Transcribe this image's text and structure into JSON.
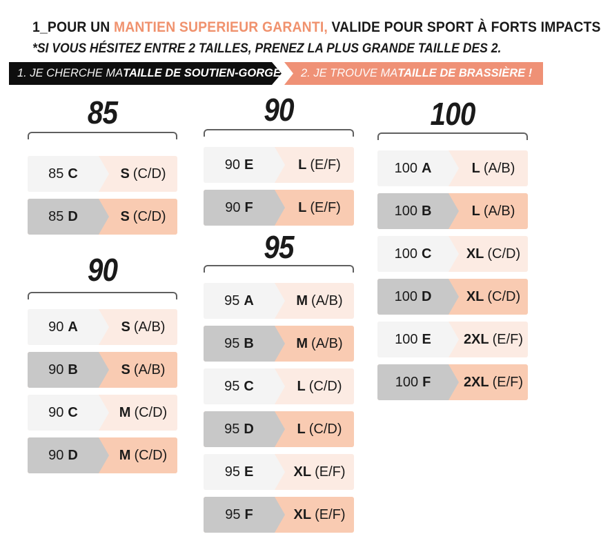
{
  "colors": {
    "accent": "#f0926e",
    "banner_dark_bg": "#0e0e0e",
    "banner_accent_bg": "#ef9176",
    "row_gray_light": "#f4f4f4",
    "row_gray_dark": "#c8c8c8",
    "row_peach_light": "#fcebe3",
    "row_peach_dark": "#f9cbb2",
    "bracket": "#5f5f5f",
    "text": "#1a1a1a"
  },
  "title": {
    "prefix": "1_POUR UN ",
    "highlight": "MANTIEN SUPERIEUR GARANTI,",
    "suffix": " VALIDE POUR SPORT À FORTS IMPACTS",
    "subtitle": "*SI VOUS HÉSITEZ ENTRE 2 TAILLES, PRENEZ LA PLUS GRANDE TAILLE DES 2."
  },
  "banners": {
    "left": {
      "prefix": "1. JE CHERCHE MA ",
      "bold": "TAILLE DE SOUTIEN-GORGE..."
    },
    "right": {
      "prefix": "2. JE TROUVE MA ",
      "bold": "TAILLE DE BRASSIÈRE !"
    }
  },
  "chart_data": {
    "type": "table",
    "title": "1_POUR UN MANTIEN SUPERIEUR GARANTI, VALIDE POUR SPORT À FORTS IMPACTS",
    "column_headers": [
      "1. JE CHERCHE MA TAILLE DE SOUTIEN-GORGE...",
      "2. JE TROUVE MA TAILLE DE BRASSIÈRE !"
    ],
    "layout_columns": [
      {
        "groups": [
          {
            "header": "85",
            "rows": [
              {
                "band": "85",
                "cup": "C",
                "size": "S",
                "range": "(C/D)",
                "shade": "light"
              },
              {
                "band": "85",
                "cup": "D",
                "size": "S",
                "range": "(C/D)",
                "shade": "dark"
              }
            ]
          },
          {
            "header": "90",
            "rows": [
              {
                "band": "90",
                "cup": "A",
                "size": "S",
                "range": "(A/B)",
                "shade": "light"
              },
              {
                "band": "90",
                "cup": "B",
                "size": "S",
                "range": "(A/B)",
                "shade": "dark"
              },
              {
                "band": "90",
                "cup": "C",
                "size": "M",
                "range": "(C/D)",
                "shade": "light"
              },
              {
                "band": "90",
                "cup": "D",
                "size": "M",
                "range": "(C/D)",
                "shade": "dark"
              }
            ]
          }
        ]
      },
      {
        "groups": [
          {
            "header": "90",
            "rows": [
              {
                "band": "90",
                "cup": "E",
                "size": "L",
                "range": "(E/F)",
                "shade": "light"
              },
              {
                "band": "90",
                "cup": "F",
                "size": "L",
                "range": "(E/F)",
                "shade": "dark"
              }
            ]
          },
          {
            "header": "95",
            "rows": [
              {
                "band": "95",
                "cup": "A",
                "size": "M",
                "range": "(A/B)",
                "shade": "light"
              },
              {
                "band": "95",
                "cup": "B",
                "size": "M",
                "range": "(A/B)",
                "shade": "dark"
              },
              {
                "band": "95",
                "cup": "C",
                "size": "L",
                "range": "(C/D)",
                "shade": "light"
              },
              {
                "band": "95",
                "cup": "D",
                "size": "L",
                "range": "(C/D)",
                "shade": "dark"
              },
              {
                "band": "95",
                "cup": "E",
                "size": "XL",
                "range": "(E/F)",
                "shade": "light"
              },
              {
                "band": "95",
                "cup": "F",
                "size": "XL",
                "range": "(E/F)",
                "shade": "dark"
              }
            ]
          }
        ]
      },
      {
        "groups": [
          {
            "header": "100",
            "rows": [
              {
                "band": "100",
                "cup": "A",
                "size": "L",
                "range": "(A/B)",
                "shade": "light"
              },
              {
                "band": "100",
                "cup": "B",
                "size": "L",
                "range": "(A/B)",
                "shade": "dark"
              },
              {
                "band": "100",
                "cup": "C",
                "size": "XL",
                "range": "(C/D)",
                "shade": "light"
              },
              {
                "band": "100",
                "cup": "D",
                "size": "XL",
                "range": "(C/D)",
                "shade": "dark"
              },
              {
                "band": "100",
                "cup": "E",
                "size": "2XL",
                "range": "(E/F)",
                "shade": "light"
              },
              {
                "band": "100",
                "cup": "F",
                "size": "2XL",
                "range": "(E/F)",
                "shade": "dark"
              }
            ]
          }
        ]
      }
    ]
  }
}
